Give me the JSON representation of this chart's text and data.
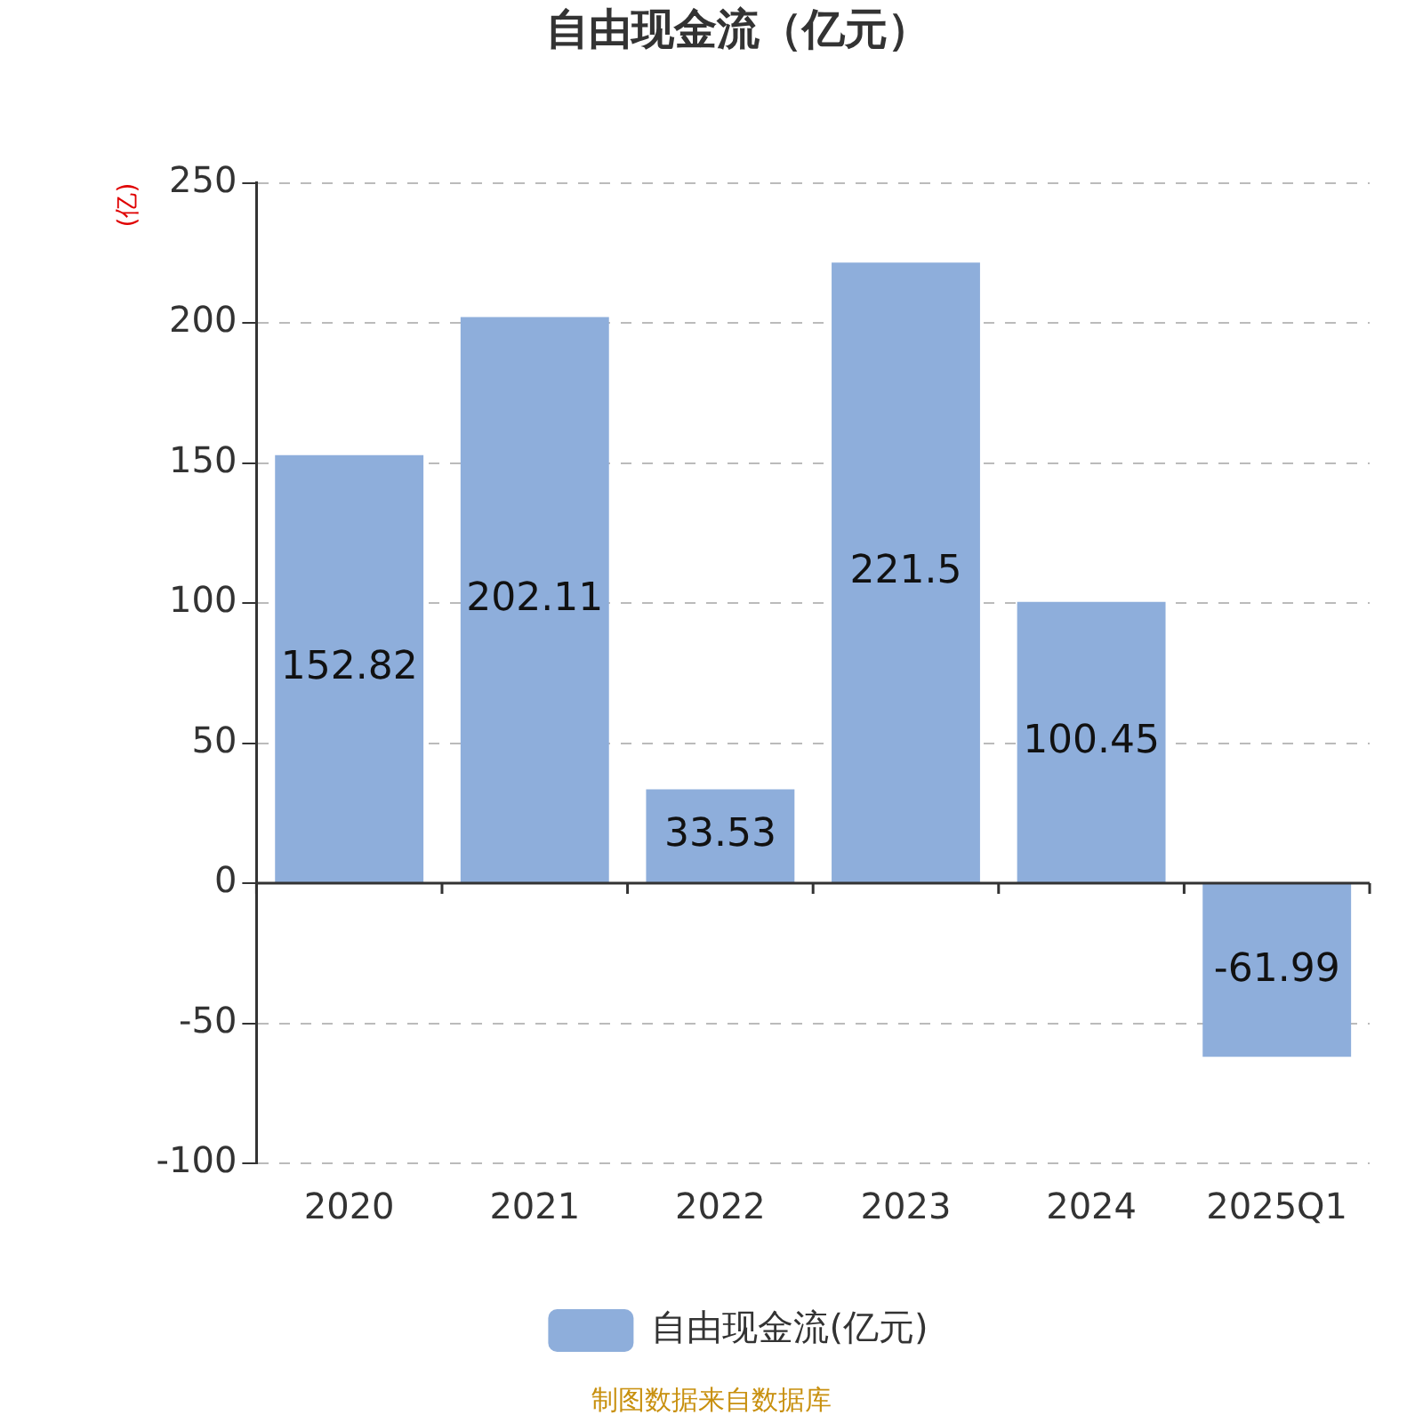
{
  "chart_data": {
    "type": "bar",
    "title": "自由现金流（亿元）",
    "ylabel": "(亿)",
    "categories": [
      "2020",
      "2021",
      "2022",
      "2023",
      "2024",
      "2025Q1"
    ],
    "series": [
      {
        "name": "自由现金流(亿元)",
        "color": "#8eaedb",
        "values": [
          152.82,
          202.11,
          33.53,
          221.5,
          100.45,
          -61.99
        ]
      }
    ],
    "ylim": [
      -100,
      250
    ],
    "yticks": [
      -100,
      -50,
      0,
      50,
      100,
      150,
      200,
      250
    ],
    "grid": "y",
    "legend": "bottom",
    "data_labels": true,
    "annotations": [
      "制图数据来自数据库"
    ]
  }
}
